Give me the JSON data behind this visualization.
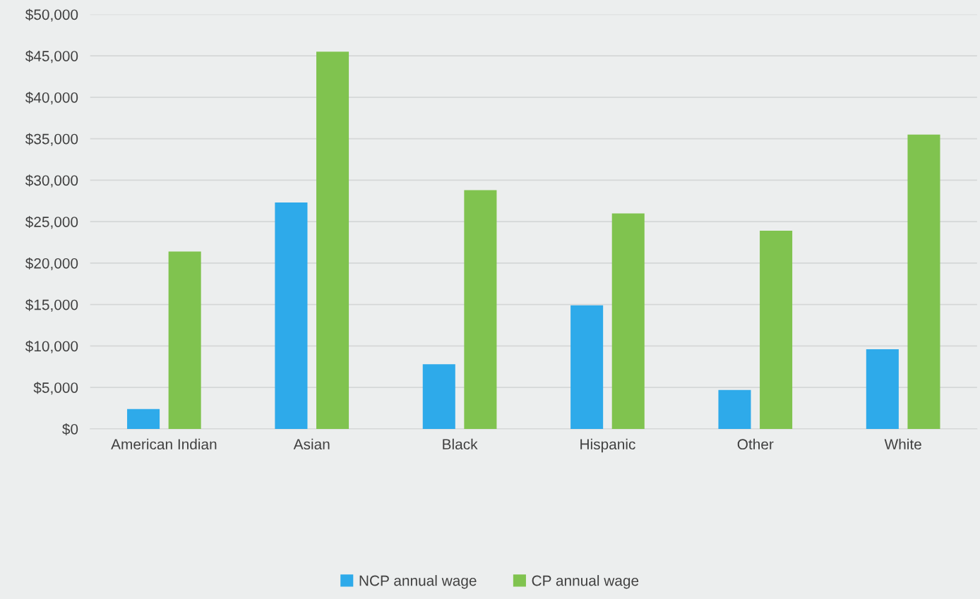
{
  "chart_data": {
    "type": "bar",
    "categories": [
      "American Indian",
      "Asian",
      "Black",
      "Hispanic",
      "Other",
      "White"
    ],
    "series": [
      {
        "name": "NCP annual wage",
        "color": "#2eaaea",
        "values": [
          2400,
          27300,
          7800,
          14900,
          4700,
          9600
        ]
      },
      {
        "name": "CP annual wage",
        "color": "#80c34f",
        "values": [
          21400,
          45500,
          28800,
          26000,
          23900,
          35500
        ]
      }
    ],
    "ylim": [
      0,
      50000
    ],
    "yticks": [
      {
        "value": 0,
        "label": "$0"
      },
      {
        "value": 5000,
        "label": "$5,000"
      },
      {
        "value": 10000,
        "label": "$10,000"
      },
      {
        "value": 15000,
        "label": "$15,000"
      },
      {
        "value": 20000,
        "label": "$20,000"
      },
      {
        "value": 25000,
        "label": "$25,000"
      },
      {
        "value": 30000,
        "label": "$30,000"
      },
      {
        "value": 35000,
        "label": "$35,000"
      },
      {
        "value": 40000,
        "label": "$40,000"
      },
      {
        "value": 45000,
        "label": "$45,000"
      },
      {
        "value": 50000,
        "label": "$50,000"
      }
    ],
    "grid": "y",
    "legend": "bottom"
  }
}
